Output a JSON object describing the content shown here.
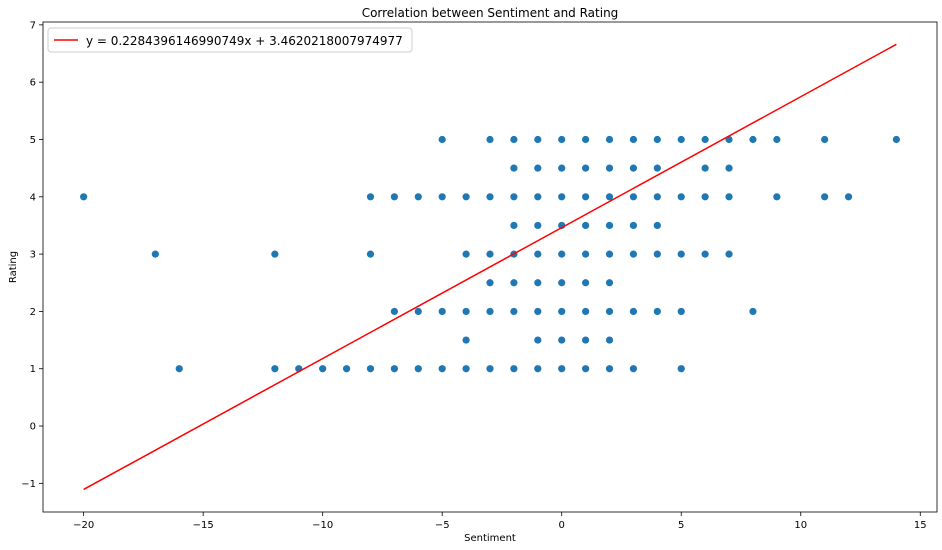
{
  "chart_data": {
    "type": "scatter",
    "title": "Correlation between Sentiment and Rating",
    "xlabel": "Sentiment",
    "ylabel": "Rating",
    "xlim": [
      -21.7,
      15.7
    ],
    "ylim": [
      -1.5,
      7.05
    ],
    "x_ticks": [
      -20,
      -15,
      -10,
      -5,
      0,
      5,
      10,
      15
    ],
    "y_ticks": [
      -1,
      0,
      1,
      2,
      3,
      4,
      5,
      6,
      7
    ],
    "x_tick_labels": [
      "−20",
      "−15",
      "−10",
      "−5",
      "0",
      "5",
      "10",
      "15"
    ],
    "y_tick_labels": [
      "−1",
      "0",
      "1",
      "2",
      "3",
      "4",
      "5",
      "6",
      "7"
    ],
    "grid": false,
    "legend_position": "top-left",
    "marker_color": "#1f77b4",
    "line_color": "#ff0000",
    "regression": {
      "label": "y = 0.2284396146990749x + 3.4620218007974977",
      "slope": 0.2284396146990749,
      "intercept": 3.4620218007974977,
      "x_range": [
        -20,
        14
      ]
    },
    "points": [
      [
        -20,
        4
      ],
      [
        -17,
        3
      ],
      [
        -16,
        1
      ],
      [
        -12,
        3
      ],
      [
        -12,
        1
      ],
      [
        -11,
        1
      ],
      [
        -10,
        1
      ],
      [
        -9,
        1
      ],
      [
        -8,
        4
      ],
      [
        -8,
        3
      ],
      [
        -8,
        1
      ],
      [
        -7,
        4
      ],
      [
        -7,
        2
      ],
      [
        -7,
        1
      ],
      [
        -6,
        4
      ],
      [
        -6,
        2
      ],
      [
        -6,
        1
      ],
      [
        -5,
        5
      ],
      [
        -5,
        4
      ],
      [
        -5,
        2
      ],
      [
        -5,
        1
      ],
      [
        -4,
        4
      ],
      [
        -4,
        3
      ],
      [
        -4,
        2
      ],
      [
        -4,
        1.5
      ],
      [
        -4,
        1
      ],
      [
        -3,
        5
      ],
      [
        -3,
        4
      ],
      [
        -3,
        3
      ],
      [
        -3,
        2.5
      ],
      [
        -3,
        2
      ],
      [
        -3,
        1
      ],
      [
        -2,
        5
      ],
      [
        -2,
        4.5
      ],
      [
        -2,
        4
      ],
      [
        -2,
        3.5
      ],
      [
        -2,
        3
      ],
      [
        -2,
        2.5
      ],
      [
        -2,
        2
      ],
      [
        -2,
        1
      ],
      [
        -1,
        5
      ],
      [
        -1,
        4.5
      ],
      [
        -1,
        4
      ],
      [
        -1,
        3.5
      ],
      [
        -1,
        3
      ],
      [
        -1,
        2.5
      ],
      [
        -1,
        2
      ],
      [
        -1,
        1.5
      ],
      [
        -1,
        1
      ],
      [
        0,
        5
      ],
      [
        0,
        4.5
      ],
      [
        0,
        4
      ],
      [
        0,
        3.5
      ],
      [
        0,
        3
      ],
      [
        0,
        2.5
      ],
      [
        0,
        2
      ],
      [
        0,
        1.5
      ],
      [
        0,
        1
      ],
      [
        1,
        5
      ],
      [
        1,
        4.5
      ],
      [
        1,
        4
      ],
      [
        1,
        3.5
      ],
      [
        1,
        3
      ],
      [
        1,
        2.5
      ],
      [
        1,
        2
      ],
      [
        1,
        1.5
      ],
      [
        1,
        1
      ],
      [
        2,
        5
      ],
      [
        2,
        4.5
      ],
      [
        2,
        4
      ],
      [
        2,
        3.5
      ],
      [
        2,
        3
      ],
      [
        2,
        2.5
      ],
      [
        2,
        2
      ],
      [
        2,
        1.5
      ],
      [
        2,
        1
      ],
      [
        3,
        5
      ],
      [
        3,
        4.5
      ],
      [
        3,
        4
      ],
      [
        3,
        3.5
      ],
      [
        3,
        3
      ],
      [
        3,
        2
      ],
      [
        3,
        1
      ],
      [
        4,
        5
      ],
      [
        4,
        4.5
      ],
      [
        4,
        4
      ],
      [
        4,
        3.5
      ],
      [
        4,
        3
      ],
      [
        4,
        2
      ],
      [
        5,
        5
      ],
      [
        5,
        4
      ],
      [
        5,
        3
      ],
      [
        5,
        2
      ],
      [
        5,
        1
      ],
      [
        6,
        5
      ],
      [
        6,
        4.5
      ],
      [
        6,
        4
      ],
      [
        6,
        3
      ],
      [
        7,
        5
      ],
      [
        7,
        4.5
      ],
      [
        7,
        4
      ],
      [
        7,
        3
      ],
      [
        8,
        5
      ],
      [
        8,
        2
      ],
      [
        9,
        5
      ],
      [
        9,
        4
      ],
      [
        11,
        5
      ],
      [
        11,
        4
      ],
      [
        12,
        4
      ],
      [
        14,
        5
      ]
    ]
  }
}
